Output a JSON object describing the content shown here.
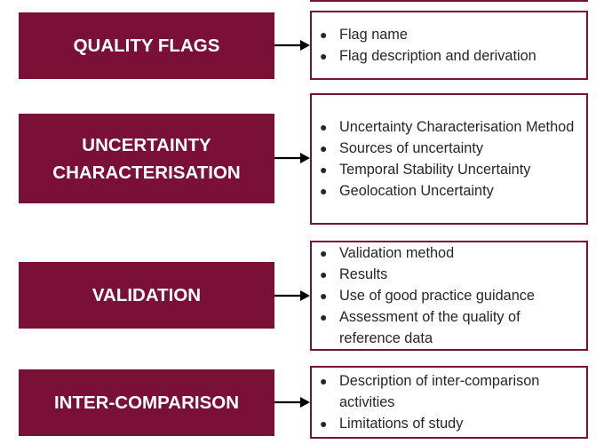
{
  "rows": [
    {
      "label": "QUALITY FLAGS",
      "items": [
        "Flag name",
        "Flag description and derivation"
      ]
    },
    {
      "label": "UNCERTAINTY\nCHARACTERISATION",
      "items": [
        "Uncertainty Characterisation Method",
        "Sources of uncertainty",
        "Temporal Stability Uncertainty",
        "Geolocation Uncertainty"
      ]
    },
    {
      "label": "VALIDATION",
      "items": [
        "Validation method",
        "Results",
        "Use of good practice guidance",
        "Assessment of the quality of reference data"
      ]
    },
    {
      "label": "INTER-COMPARISON",
      "items": [
        "Description of inter-comparison activities",
        "Limitations of study"
      ]
    }
  ],
  "colors": {
    "label_fill": "#7a1035",
    "label_text": "#ffffff",
    "box_border": "#7a1035",
    "arrow": "#000000"
  },
  "icons": {
    "bullet": "bullet-icon",
    "arrow": "arrow-right-icon"
  }
}
